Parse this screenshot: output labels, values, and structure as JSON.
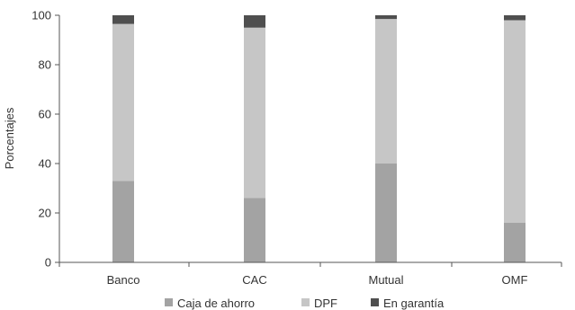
{
  "chart_data": {
    "type": "bar",
    "stacked": true,
    "title": "",
    "xlabel": "",
    "ylabel": "Porcentajes",
    "ylim": [
      0,
      100
    ],
    "yticks": [
      0,
      20,
      40,
      60,
      80,
      100
    ],
    "grid": false,
    "legend_position": "bottom",
    "categories": [
      "Banco",
      "CAC",
      "Mutual",
      "OMF"
    ],
    "series": [
      {
        "name": "Caja de ahorro",
        "color": "#a3a3a3",
        "values": [
          33,
          26,
          40,
          16
        ]
      },
      {
        "name": "DPF",
        "color": "#c6c6c6",
        "values": [
          63.5,
          69,
          58.5,
          82
        ]
      },
      {
        "name": "En garantía",
        "color": "#4f4f4f",
        "values": [
          3.5,
          5,
          1.5,
          2
        ]
      }
    ]
  }
}
